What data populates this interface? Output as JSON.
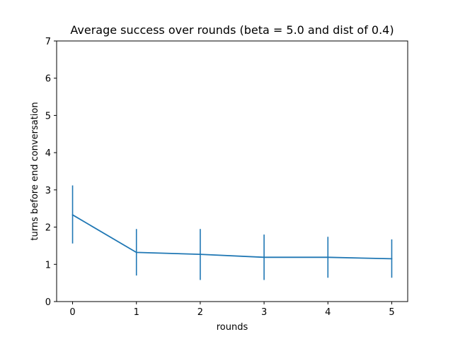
{
  "chart_data": {
    "type": "line",
    "title": "Average success over rounds (beta = 5.0 and dist of 0.4)",
    "xlabel": "rounds",
    "ylabel": "turns before end conversation",
    "x": [
      0,
      1,
      2,
      3,
      4,
      5
    ],
    "series": [
      {
        "values": [
          2.33,
          1.32,
          1.27,
          1.19,
          1.19,
          1.15
        ],
        "error_low": [
          1.56,
          0.7,
          0.58,
          0.58,
          0.64,
          0.64
        ],
        "error_high": [
          3.12,
          1.95,
          1.95,
          1.8,
          1.74,
          1.67
        ],
        "color": "#1f77b4"
      }
    ],
    "xlim": [
      -0.25,
      5.25
    ],
    "ylim": [
      0,
      7
    ],
    "xticks": [
      "0",
      "1",
      "2",
      "3",
      "4",
      "5"
    ],
    "yticks": [
      "0",
      "1",
      "2",
      "3",
      "4",
      "5",
      "6",
      "7"
    ],
    "grid": false,
    "legend": "none"
  }
}
